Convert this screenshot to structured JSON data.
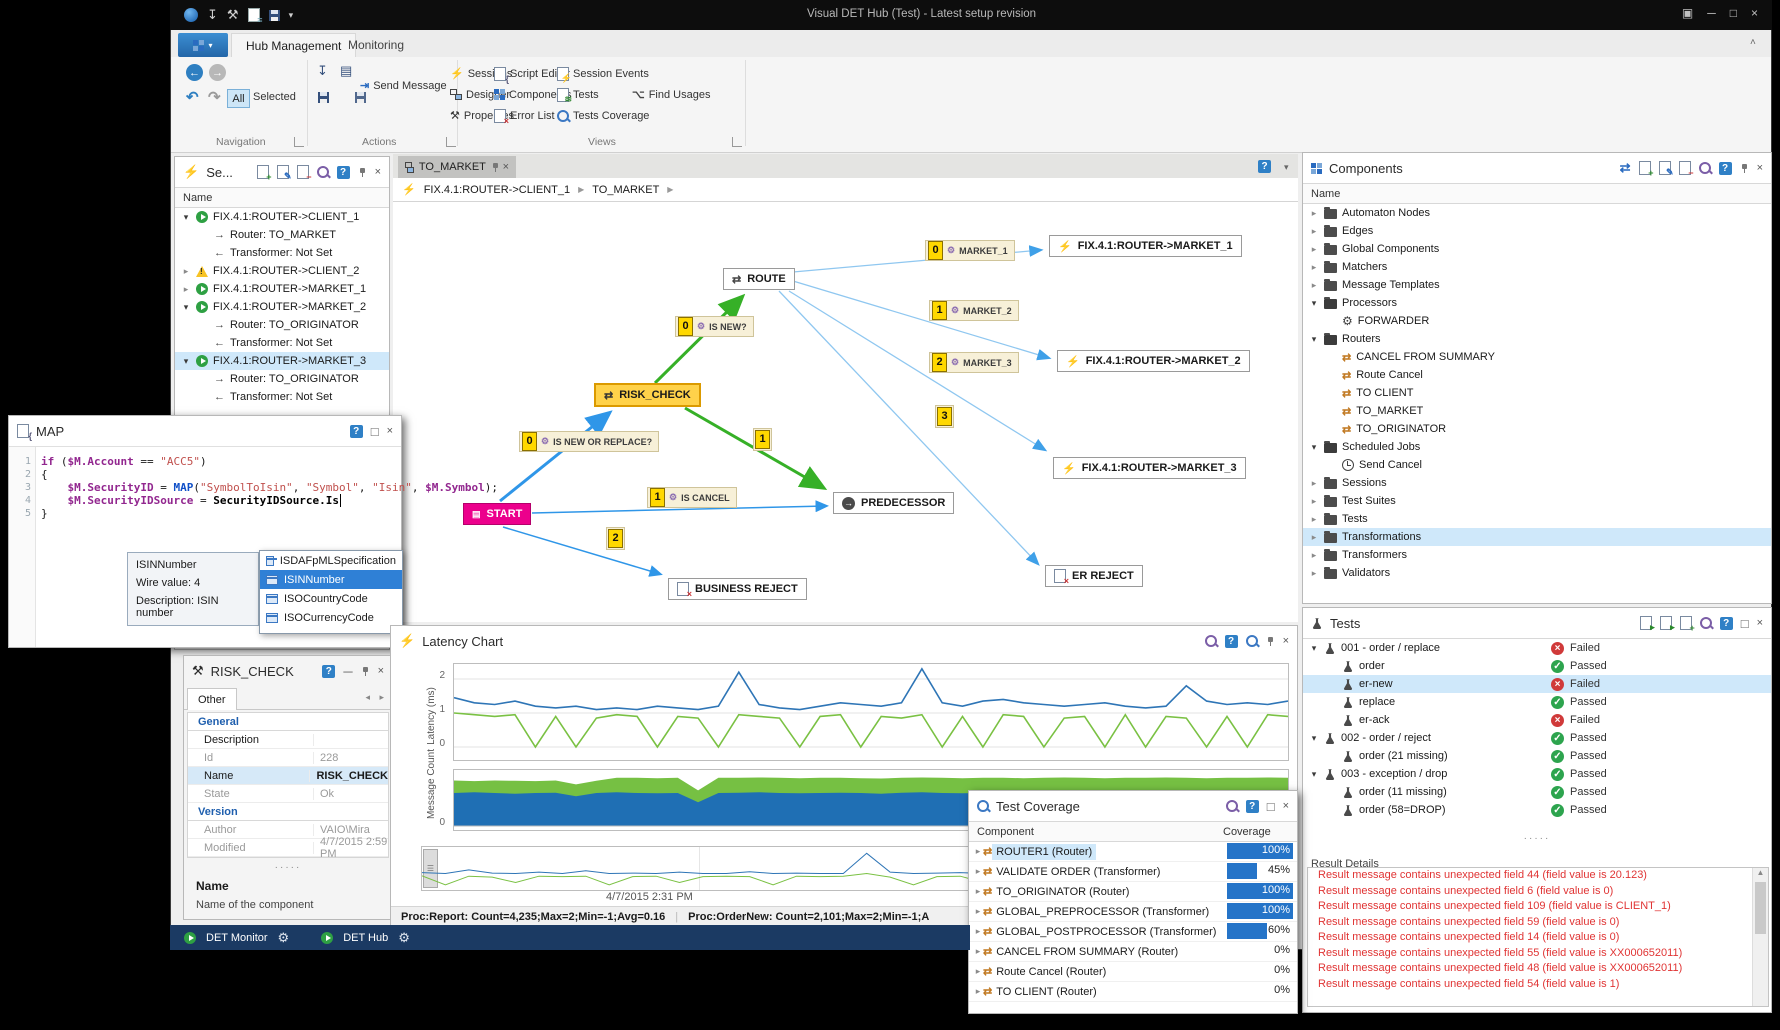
{
  "window": {
    "title": "Visual DET Hub (Test) - Latest setup revision",
    "taskbar": [
      {
        "label": "DET Monitor"
      },
      {
        "label": "DET Hub"
      }
    ]
  },
  "ribbon": {
    "tabs": [
      {
        "label": "Hub Management",
        "active": true
      },
      {
        "label": "Monitoring",
        "active": false
      }
    ],
    "groups": [
      {
        "name": "Navigation"
      },
      {
        "name": "Actions"
      },
      {
        "name": "Views"
      }
    ],
    "navigation": {
      "all_label": "All",
      "selected_label": "Selected"
    },
    "actions": {
      "send_message": "Send Message"
    },
    "views": [
      {
        "label": "Sessions"
      },
      {
        "label": "Designer"
      },
      {
        "label": "Properties"
      },
      {
        "label": "Script Editor"
      },
      {
        "label": "Components"
      },
      {
        "label": "Error List"
      },
      {
        "label": "Session Events"
      },
      {
        "label": "Tests"
      },
      {
        "label": "Tests Coverage"
      },
      {
        "label": "Find Usages"
      }
    ]
  },
  "sessions_panel": {
    "title": "Se...",
    "column": "Name",
    "items": [
      {
        "t": "FIX.4.1:ROUTER->CLIENT_1",
        "icon": "play",
        "arrow": "open",
        "lvl": 0
      },
      {
        "t": "Router: TO_MARKET",
        "icon": "aright",
        "lvl": 1
      },
      {
        "t": "Transformer: Not Set",
        "icon": "aleft",
        "lvl": 1
      },
      {
        "t": "FIX.4.1:ROUTER->CLIENT_2",
        "icon": "warn",
        "arrow": "closed",
        "lvl": 0
      },
      {
        "t": "FIX.4.1:ROUTER->MARKET_1",
        "icon": "play",
        "arrow": "closed",
        "lvl": 0
      },
      {
        "t": "FIX.4.1:ROUTER->MARKET_2",
        "icon": "play",
        "arrow": "open",
        "lvl": 0
      },
      {
        "t": "Router: TO_ORIGINATOR",
        "icon": "aright",
        "lvl": 1
      },
      {
        "t": "Transformer: Not Set",
        "icon": "aleft",
        "lvl": 1
      },
      {
        "t": "FIX.4.1:ROUTER->MARKET_3",
        "icon": "play",
        "arrow": "open",
        "lvl": 0,
        "sel": true
      },
      {
        "t": "Router: TO_ORIGINATOR",
        "icon": "aright",
        "lvl": 1
      },
      {
        "t": "Transformer: Not Set",
        "icon": "aleft",
        "lvl": 1
      }
    ]
  },
  "map_window": {
    "title": "MAP",
    "code": [
      [
        {
          "c": "k",
          "t": "if "
        },
        {
          "c": "p",
          "t": "("
        },
        {
          "c": "v",
          "t": "$M.Account"
        },
        {
          "c": "p",
          "t": " == "
        },
        {
          "c": "s",
          "t": "\"ACC5\""
        },
        {
          "c": "p",
          "t": ")"
        }
      ],
      [
        {
          "c": "p",
          "t": "{"
        }
      ],
      [
        {
          "c": "p",
          "t": "    "
        },
        {
          "c": "v",
          "t": "$M.SecurityID"
        },
        {
          "c": "p",
          "t": " = "
        },
        {
          "c": "f",
          "t": "MAP"
        },
        {
          "c": "p",
          "t": "("
        },
        {
          "c": "s",
          "t": "\"SymbolToIsin\""
        },
        {
          "c": "p",
          "t": ", "
        },
        {
          "c": "s",
          "t": "\"Symbol\""
        },
        {
          "c": "p",
          "t": ", "
        },
        {
          "c": "s",
          "t": "\"Isin\""
        },
        {
          "c": "p",
          "t": ", "
        },
        {
          "c": "v",
          "t": "$M.Symbol"
        },
        {
          "c": "p",
          "t": ");"
        }
      ],
      [
        {
          "c": "p",
          "t": "    "
        },
        {
          "c": "v",
          "t": "$M.SecurityIDSource"
        },
        {
          "c": "p",
          "t": " = "
        },
        {
          "c": "t",
          "t": "SecurityIDSource.Is"
        },
        {
          "c": "cur",
          "t": ""
        }
      ],
      [
        {
          "c": "p",
          "t": "}"
        }
      ]
    ],
    "tooltip": [
      "ISINNumber",
      "Wire value: 4",
      "Description: ISIN number"
    ],
    "completions": [
      {
        "label": "ISDAFpMLSpecification"
      },
      {
        "label": "ISINNumber",
        "selected": true
      },
      {
        "label": "ISOCountryCode"
      },
      {
        "label": "ISOCurrencyCode"
      }
    ]
  },
  "properties_panel": {
    "title": "RISK_CHECK",
    "tab": "Other",
    "rows": [
      {
        "cat": "General"
      },
      {
        "l": "Description",
        "v": ""
      },
      {
        "l": "Id",
        "v": "228",
        "dim": true
      },
      {
        "l": "Name",
        "v": "RISK_CHECK",
        "sel": true,
        "bold": true
      },
      {
        "l": "State",
        "v": "Ok",
        "dim": true
      },
      {
        "cat": "Version"
      },
      {
        "l": "Author",
        "v": "VAIO\\Mira",
        "dim": true
      },
      {
        "l": "Modified",
        "v": "4/7/2015 2:59 PM",
        "dim": true
      }
    ],
    "footer_title": "Name",
    "footer_desc": "Name of the component"
  },
  "designer": {
    "tab": "TO_MARKET",
    "breadcrumb": [
      "FIX.4.1:ROUTER->CLIENT_1",
      "TO_MARKET"
    ],
    "nodes": {
      "start": "START",
      "risk": "RISK_CHECK",
      "route": "ROUTE",
      "pred": "PREDECESSOR",
      "brej": "BUSINESS REJECT",
      "erej": "ER REJECT",
      "m1": "FIX.4.1:ROUTER->MARKET_1",
      "m2": "FIX.4.1:ROUTER->MARKET_2",
      "m3": "FIX.4.1:ROUTER->MARKET_3"
    },
    "edge_labels": {
      "new_or_replace": {
        "n": "0",
        "t": "IS NEW OR REPLACE?"
      },
      "is_new": {
        "n": "0",
        "t": "IS NEW?"
      },
      "is_cancel": {
        "n": "1",
        "t": "IS CANCEL"
      },
      "market1": {
        "n": "0",
        "t": "MARKET_1"
      },
      "market2": {
        "n": "1",
        "t": "MARKET_2"
      },
      "market3": {
        "n": "2",
        "t": "MARKET_3"
      },
      "b1": "1",
      "b2": "2",
      "b3": "3"
    }
  },
  "latency_chart": {
    "title": "Latency Chart",
    "type": "line+area",
    "y1_label": "Latency (ms)",
    "y1_ticks": [
      "2",
      "1",
      "0"
    ],
    "y2_label": "Message Count",
    "y2_tick": "0",
    "time_label": "4/7/2015 2:31 PM",
    "status": [
      "Proc:Report: Count=4,235;Max=2;Min=-1;Avg=0.16",
      "Proc:OrderNew: Count=2,101;Max=2;Min=-1;A"
    ],
    "colors": {
      "blue": "#2e75b6",
      "green": "#7ac143",
      "area_blue": "#1f6fb4",
      "area_green": "#76c043"
    },
    "series": {
      "latency_avg": [
        1.45,
        1.3,
        1.25,
        1.35,
        1.2,
        1.15,
        1.2,
        1.1,
        1.15,
        1.1,
        1.2,
        1.15,
        1.1,
        1.2,
        2.2,
        1.25,
        1.15,
        1.1,
        1.2,
        1.3,
        1.25,
        1.2,
        1.3,
        2.3,
        1.3,
        1.2,
        1.35,
        1.4,
        1.3,
        1.25,
        1.2,
        1.25,
        1.3,
        1.2,
        1.15,
        1.2,
        1.8,
        1.35,
        1.25,
        1.3,
        1.25,
        1.35
      ],
      "latency_min": [
        1.0,
        0.95,
        0.9,
        0.95,
        0,
        0.9,
        0,
        0.85,
        0.95,
        0.9,
        0,
        0.9,
        0.85,
        0,
        0.95,
        0.9,
        0.85,
        0,
        0.9,
        0.95,
        0,
        0.9,
        0.85,
        0.95,
        0,
        0.9,
        0,
        0.95,
        0.9,
        0,
        0.85,
        0.9,
        0,
        0.95,
        0,
        0.9,
        0.85,
        0,
        0.9,
        0,
        0.95,
        0.9
      ],
      "msg_blue": [
        5,
        5.1,
        5,
        4.9,
        5,
        5.05,
        4.5,
        5,
        5.1,
        5,
        4.95,
        5,
        3.6,
        5,
        5.05,
        5.1,
        5,
        4.95,
        5,
        5.05,
        5,
        4.9,
        5.05,
        5.1,
        5,
        4.95,
        5,
        5.05,
        5,
        5.1,
        5,
        4.95,
        5.05,
        5,
        5.1,
        5,
        4.95,
        5,
        5.05,
        5,
        5.1,
        5
      ],
      "msg_total": [
        6.9,
        6.8,
        6.9,
        6.85,
        6.8,
        6.9,
        6.3,
        6.85,
        7.3,
        7.3,
        7.25,
        7.3,
        5.4,
        7.3,
        7.3,
        7.35,
        7.3,
        7.25,
        7.3,
        7.3,
        7.25,
        7.2,
        7.3,
        7.35,
        7.3,
        7.25,
        7.3,
        7.3,
        7.25,
        7.3,
        7.35,
        7.3,
        7.25,
        7.3,
        7.3,
        7.35,
        7.3,
        7.25,
        7.3,
        7.3,
        7.35,
        7.3
      ],
      "ov_blue": [
        0.32,
        0.3,
        0.38,
        0.31,
        0.3,
        0.33,
        0.3,
        0.36,
        0.3,
        0.31,
        0.3,
        0.33,
        0.3,
        0.3,
        0.34,
        0.3,
        0.31,
        0.3,
        0.3,
        0.75,
        0.33,
        0.3,
        0.31,
        0.32,
        0.3,
        0.33,
        0.3,
        0.31,
        0.3,
        0.32,
        0.3,
        0.68,
        0.34,
        0.3,
        0.31,
        0.3,
        0.32,
        0.3
      ],
      "ov_green": [
        0.25,
        0.05,
        0.24,
        0.22,
        0.1,
        0.24,
        0.23,
        0.24,
        0.05,
        0.23,
        0.24,
        0.1,
        0.23,
        0.24,
        0.23,
        0.05,
        0.24,
        0.23,
        0.24,
        0.3,
        0.22,
        0.05,
        0.23,
        0.24,
        0.1,
        0.23,
        0.24,
        0.05,
        0.23,
        0.22,
        0.24,
        0.23,
        0.1,
        0.24,
        0.23,
        0.05,
        0.24,
        0.23
      ]
    }
  },
  "components_panel": {
    "title": "Components",
    "column": "Name",
    "items": [
      {
        "t": "Automaton Nodes",
        "icon": "folder",
        "arrow": "closed",
        "lvl": 0
      },
      {
        "t": "Edges",
        "icon": "folder",
        "arrow": "closed",
        "lvl": 0
      },
      {
        "t": "Global Components",
        "icon": "folder",
        "arrow": "closed",
        "lvl": 0
      },
      {
        "t": "Matchers",
        "icon": "folder",
        "arrow": "closed",
        "lvl": 0
      },
      {
        "t": "Message Templates",
        "icon": "folder",
        "arrow": "closed",
        "lvl": 0
      },
      {
        "t": "Processors",
        "icon": "folderopen",
        "arrow": "open",
        "lvl": 0
      },
      {
        "t": "FORWARDER",
        "icon": "gear",
        "lvl": 1
      },
      {
        "t": "Routers",
        "icon": "folderopen",
        "arrow": "open",
        "lvl": 0
      },
      {
        "t": "CANCEL FROM SUMMARY",
        "icon": "router",
        "lvl": 1
      },
      {
        "t": "Route Cancel",
        "icon": "router",
        "lvl": 1
      },
      {
        "t": "TO CLIENT",
        "icon": "router",
        "lvl": 1
      },
      {
        "t": "TO_MARKET",
        "icon": "router",
        "lvl": 1
      },
      {
        "t": "TO_ORIGINATOR",
        "icon": "router",
        "lvl": 1
      },
      {
        "t": "Scheduled Jobs",
        "icon": "folderopen",
        "arrow": "open",
        "lvl": 0
      },
      {
        "t": "Send Cancel",
        "icon": "clock",
        "lvl": 1
      },
      {
        "t": "Sessions",
        "icon": "folder",
        "arrow": "closed",
        "lvl": 0
      },
      {
        "t": "Test Suites",
        "icon": "folder",
        "arrow": "closed",
        "lvl": 0
      },
      {
        "t": "Tests",
        "icon": "folder",
        "arrow": "closed",
        "lvl": 0
      },
      {
        "t": "Transformations",
        "icon": "folder",
        "arrow": "closed",
        "lvl": 0,
        "sel": true
      },
      {
        "t": "Transformers",
        "icon": "folder",
        "arrow": "closed",
        "lvl": 0
      },
      {
        "t": "Validators",
        "icon": "folder",
        "arrow": "closed",
        "lvl": 0
      }
    ]
  },
  "tests_panel": {
    "title": "Tests",
    "items": [
      {
        "t": "001 - order / replace",
        "icon": "suite",
        "arrow": "open",
        "lvl": 0,
        "s": "Failed"
      },
      {
        "t": "order",
        "icon": "flask",
        "lvl": 1,
        "s": "Passed"
      },
      {
        "t": "er-new",
        "icon": "flask",
        "lvl": 1,
        "s": "Failed",
        "sel": true
      },
      {
        "t": "replace",
        "icon": "flask",
        "lvl": 1,
        "s": "Passed"
      },
      {
        "t": "er-ack",
        "icon": "flask",
        "lvl": 1,
        "s": "Failed"
      },
      {
        "t": "002 - order / reject",
        "icon": "suite",
        "arrow": "open",
        "lvl": 0,
        "s": "Passed"
      },
      {
        "t": "order (21 missing)",
        "icon": "flask",
        "lvl": 1,
        "s": "Passed"
      },
      {
        "t": "003 - exception / drop",
        "icon": "suite",
        "arrow": "open",
        "lvl": 0,
        "s": "Passed"
      },
      {
        "t": "order (11 missing)",
        "icon": "flask",
        "lvl": 1,
        "s": "Passed"
      },
      {
        "t": "order (58=DROP)",
        "icon": "flask",
        "lvl": 1,
        "s": "Passed"
      }
    ],
    "result_details": {
      "label": "Result Details",
      "messages": [
        "Result message contains unexpected field 44 (field value is 20.123)",
        "Result message contains unexpected field 6 (field value is 0)",
        "Result message contains unexpected field 109 (field value is CLIENT_1)",
        "Result message contains unexpected field 59 (field value is 0)",
        "Result message contains unexpected field 14 (field value is 0)",
        "Result message contains unexpected field 55 (field value is XX000652011)",
        "Result message contains unexpected field 48 (field value is XX000652011)",
        "Result message contains unexpected field 54 (field value is 1)"
      ]
    }
  },
  "coverage_window": {
    "title": "Test Coverage",
    "columns": [
      "Component",
      "Coverage"
    ],
    "rows": [
      {
        "c": "ROUTER1 (Router)",
        "v": 100,
        "sel": true
      },
      {
        "c": "VALIDATE ORDER (Transformer)",
        "v": 45
      },
      {
        "c": "TO_ORIGINATOR (Router)",
        "v": 100
      },
      {
        "c": "GLOBAL_PREPROCESSOR (Transformer)",
        "v": 100
      },
      {
        "c": "GLOBAL_POSTPROCESSOR (Transformer)",
        "v": 60
      },
      {
        "c": "CANCEL FROM SUMMARY (Router)",
        "v": 0
      },
      {
        "c": "Route Cancel (Router)",
        "v": 0
      },
      {
        "c": "TO CLIENT (Router)",
        "v": 0
      }
    ]
  },
  "colors": {
    "accent": "#2e7fc1",
    "start_node": "#ec008c",
    "risk_node": "#ffd24a",
    "selection": "#cfe8fa",
    "fail": "#d03a3a",
    "pass": "#2da44e",
    "error_text": "#e03434",
    "taskbar": "#1b3a63",
    "edge_blue": "#2f96e8",
    "edge_green": "#36b027",
    "edge_lightblue": "#8fc7f0",
    "badge": "#ffd800"
  }
}
